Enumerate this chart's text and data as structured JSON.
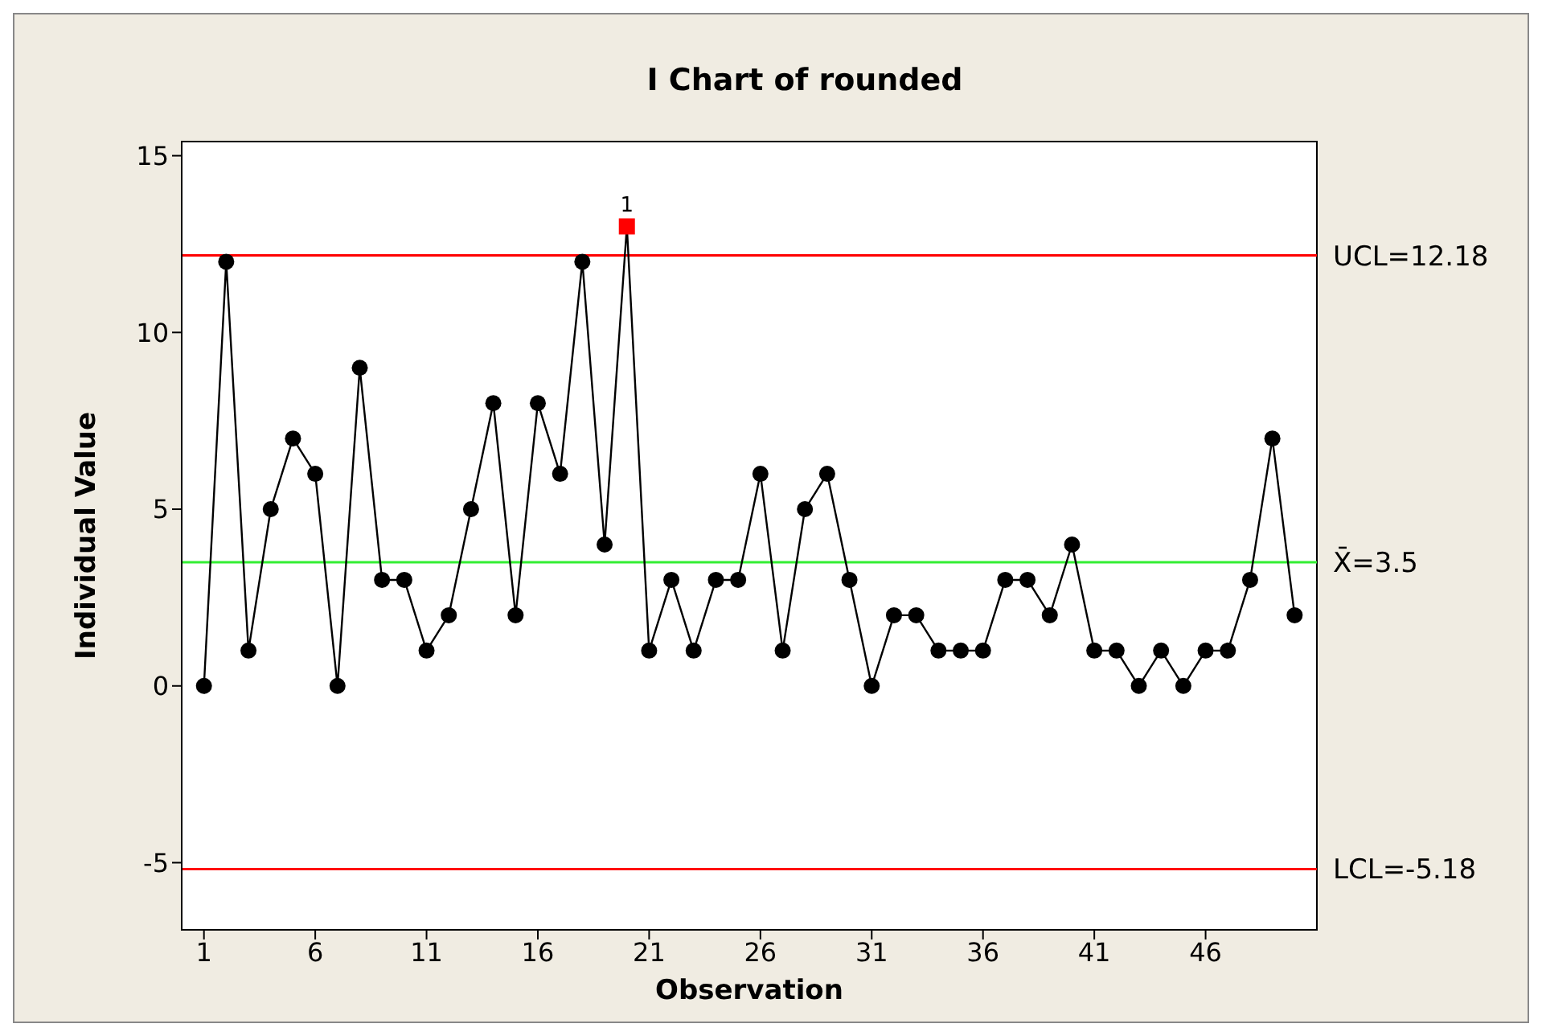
{
  "chart_data": {
    "type": "line",
    "title": "I Chart of rounded",
    "xlabel": "Observation",
    "ylabel": "Individual Value",
    "x": [
      1,
      2,
      3,
      4,
      5,
      6,
      7,
      8,
      9,
      10,
      11,
      12,
      13,
      14,
      15,
      16,
      17,
      18,
      19,
      20,
      21,
      22,
      23,
      24,
      25,
      26,
      27,
      28,
      29,
      30,
      31,
      32,
      33,
      34,
      35,
      36,
      37,
      38,
      39,
      40,
      41,
      42,
      43,
      44,
      45,
      46,
      47,
      48,
      49,
      50
    ],
    "series": [
      {
        "type": "line",
        "color": "#000000",
        "marker": "none",
        "values": [
          0,
          12,
          1,
          5,
          7,
          6,
          0,
          9,
          3,
          3,
          1,
          2,
          5,
          8,
          2,
          8,
          6,
          12,
          4,
          13,
          1,
          3,
          1,
          3,
          3,
          6,
          1,
          5,
          6,
          3,
          0,
          2,
          2,
          1,
          1,
          1,
          3,
          3,
          2,
          4,
          1,
          1,
          0,
          1,
          0,
          1,
          1,
          3,
          7,
          2
        ]
      },
      {
        "type": "scatter",
        "color": "#000000",
        "x": [
          1,
          2,
          3,
          4,
          5,
          6,
          7,
          8,
          9,
          10,
          11,
          12,
          13,
          14,
          15,
          16,
          17,
          18,
          19,
          21,
          22,
          23,
          24,
          25,
          26,
          27,
          28,
          29,
          30,
          31,
          32,
          33,
          34,
          35,
          36,
          37,
          38,
          39,
          40,
          41,
          42,
          43,
          44,
          45,
          46,
          47,
          48,
          49,
          50
        ],
        "values": [
          0,
          12,
          1,
          5,
          7,
          6,
          0,
          9,
          3,
          3,
          1,
          2,
          5,
          8,
          2,
          8,
          6,
          12,
          4,
          1,
          3,
          1,
          3,
          3,
          6,
          1,
          5,
          6,
          3,
          0,
          2,
          2,
          1,
          1,
          1,
          3,
          3,
          2,
          4,
          1,
          1,
          0,
          1,
          0,
          1,
          1,
          3,
          7,
          2
        ]
      },
      {
        "type": "scatter",
        "color": "#ff0000",
        "marker": "square",
        "x": [
          20
        ],
        "values": [
          13
        ]
      }
    ],
    "xlim": [
      0,
      51
    ],
    "xticks": [
      1,
      6,
      11,
      16,
      21,
      26,
      31,
      36,
      41,
      46
    ],
    "ylim": [
      -6.9,
      15.4
    ],
    "yticks": [
      -5,
      0,
      5,
      10,
      15
    ],
    "ref_lines": [
      {
        "axis": "y",
        "value": 12.18,
        "label": "UCL=12.18",
        "color": "#ff0000"
      },
      {
        "axis": "y",
        "value": 3.5,
        "label": "X̄=3.5",
        "color": "#33ee33"
      },
      {
        "axis": "y",
        "value": -5.18,
        "label": "LCL=-5.18",
        "color": "#ff0000"
      }
    ],
    "annotations": [
      {
        "text": "1",
        "x": 20,
        "y": 13
      }
    ],
    "marker": "circle"
  }
}
